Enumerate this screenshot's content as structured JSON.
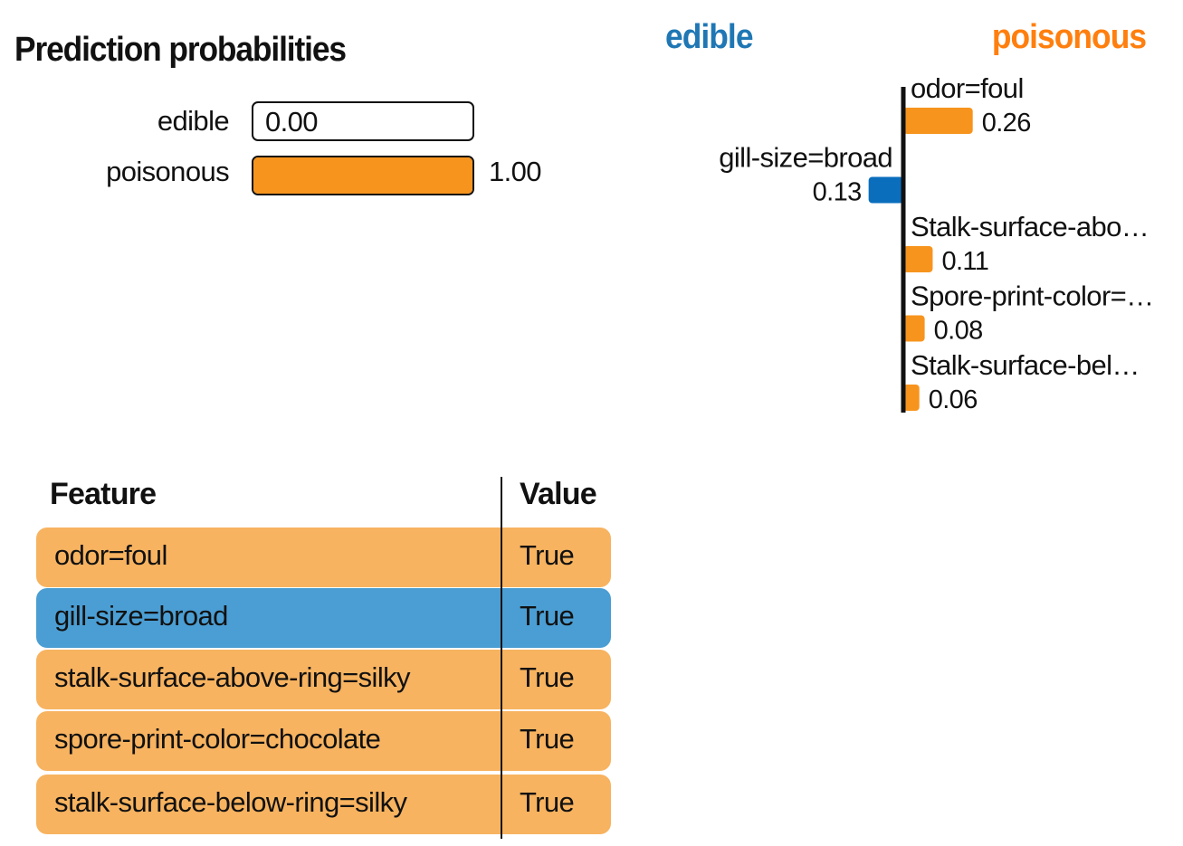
{
  "colors": {
    "negative_class": "#1f77b4",
    "positive_class": "#ff7f0e",
    "neg_bar": "#0a6ebd",
    "pos_bar": "#f7941d",
    "pos_row": "#f7b360",
    "neg_row": "#4b9ed3"
  },
  "prediction_probabilities": {
    "title": "Prediction probabilities",
    "items": [
      {
        "label": "edible",
        "value": 0.0,
        "display": "0.00",
        "color": "#ffffff"
      },
      {
        "label": "poisonous",
        "value": 1.0,
        "display": "1.00",
        "color": "#f7941d"
      }
    ]
  },
  "chart_data": {
    "type": "bar",
    "orientation": "horizontal",
    "class_labels": {
      "negative": "edible",
      "positive": "poisonous"
    },
    "bars": [
      {
        "feature": "odor=foul",
        "weight": 0.26,
        "display": "0.26",
        "class": "poisonous"
      },
      {
        "feature": "gill-size=broad",
        "weight": -0.13,
        "display": "0.13",
        "class": "edible"
      },
      {
        "feature": "Stalk-surface-abo…",
        "weight": 0.11,
        "display": "0.11",
        "class": "poisonous"
      },
      {
        "feature": "Spore-print-color=…",
        "weight": 0.08,
        "display": "0.08",
        "class": "poisonous"
      },
      {
        "feature": "Stalk-surface-bel…",
        "weight": 0.06,
        "display": "0.06",
        "class": "poisonous"
      }
    ]
  },
  "feature_table": {
    "headers": {
      "feature": "Feature",
      "value": "Value"
    },
    "rows": [
      {
        "feature": "odor=foul",
        "value": "True",
        "class": "poisonous"
      },
      {
        "feature": "gill-size=broad",
        "value": "True",
        "class": "edible"
      },
      {
        "feature": "stalk-surface-above-ring=silky",
        "value": "True",
        "class": "poisonous"
      },
      {
        "feature": "spore-print-color=chocolate",
        "value": "True",
        "class": "poisonous"
      },
      {
        "feature": "stalk-surface-below-ring=silky",
        "value": "True",
        "class": "poisonous"
      }
    ]
  }
}
